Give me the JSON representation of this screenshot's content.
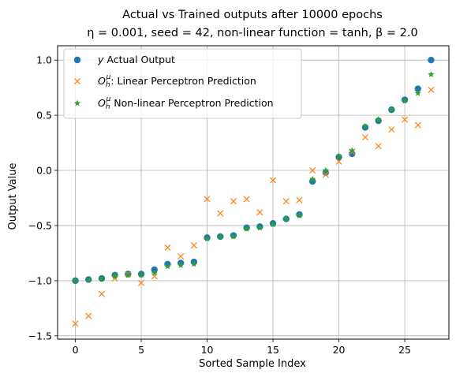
{
  "chart_data": {
    "type": "scatter",
    "title_line1": "Actual vs Trained outputs after 10000 epochs",
    "title_line2": "η = 0.001, seed = 42, non-linear function = tanh, β = 2.0",
    "xlabel": "Sorted Sample Index",
    "ylabel": "Output Value",
    "xlim": [
      -1.35,
      28.35
    ],
    "ylim": [
      -1.53,
      1.13
    ],
    "xticks": [
      0,
      5,
      10,
      15,
      20,
      25
    ],
    "yticks": [
      -1.5,
      -1.0,
      -0.5,
      0.0,
      0.5,
      1.0
    ],
    "ytick_labels": [
      "−1.5",
      "−1.0",
      "−0.5",
      "0.0",
      "0.5",
      "1.0"
    ],
    "grid": true,
    "legend_position": "upper-left",
    "x": [
      0,
      1,
      2,
      3,
      4,
      5,
      6,
      7,
      8,
      9,
      10,
      11,
      12,
      13,
      14,
      15,
      16,
      17,
      18,
      19,
      20,
      21,
      22,
      23,
      24,
      25,
      26,
      27
    ],
    "series": [
      {
        "name": "y Actual Output",
        "marker": "circle",
        "color": "#1f77b4",
        "values": [
          -1.0,
          -0.99,
          -0.98,
          -0.95,
          -0.94,
          -0.94,
          -0.9,
          -0.85,
          -0.84,
          -0.83,
          -0.61,
          -0.6,
          -0.59,
          -0.52,
          -0.51,
          -0.48,
          -0.44,
          -0.4,
          -0.1,
          -0.02,
          0.12,
          0.15,
          0.39,
          0.45,
          0.55,
          0.64,
          0.74,
          1.0
        ]
      },
      {
        "name": "O_h^μ: Linear Perceptron Prediction",
        "marker": "x",
        "color": "#ff7f0e",
        "values": [
          -1.39,
          -1.32,
          -1.12,
          -0.98,
          -0.94,
          -1.02,
          -0.96,
          -0.7,
          -0.78,
          -0.68,
          -0.26,
          -0.39,
          -0.28,
          -0.26,
          -0.38,
          -0.09,
          -0.28,
          -0.27,
          0.0,
          -0.04,
          0.08,
          0.17,
          0.3,
          0.22,
          0.37,
          0.46,
          0.41,
          0.73
        ]
      },
      {
        "name": "O_h^μ Non-linear Perceptron Prediction",
        "marker": "star",
        "color": "#2ca02c",
        "values": [
          -1.0,
          -0.99,
          -0.98,
          -0.96,
          -0.95,
          -0.95,
          -0.93,
          -0.87,
          -0.86,
          -0.85,
          -0.62,
          -0.6,
          -0.6,
          -0.53,
          -0.52,
          -0.49,
          -0.44,
          -0.41,
          -0.08,
          0.0,
          0.13,
          0.18,
          0.4,
          0.46,
          0.55,
          0.63,
          0.7,
          0.87
        ]
      }
    ]
  },
  "legend": {
    "entries": [
      {
        "prefix": "y",
        "text": " Actual Output"
      },
      {
        "prefix": "O",
        "sub": "h",
        "sup": "μ",
        "text": ": Linear Perceptron Prediction"
      },
      {
        "prefix": "O",
        "sub": "h",
        "sup": "μ",
        "text": " Non-linear Perceptron Prediction"
      }
    ]
  }
}
